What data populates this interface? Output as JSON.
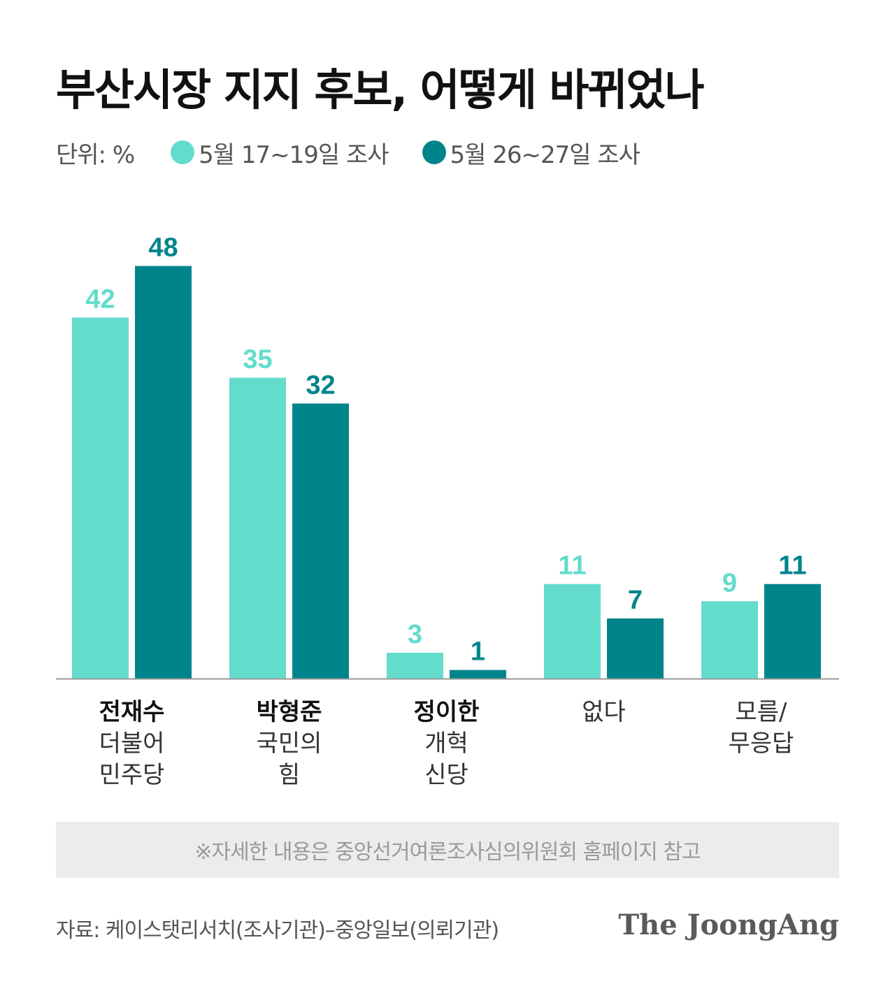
{
  "title": "부산시장 지지 후보, 어떻게 바뀌었나",
  "unit_label": "단위: %",
  "colors": {
    "series1": "#63dccc",
    "series2": "#00848c",
    "axis": "#999999",
    "text": "#1a1a1a"
  },
  "chart_data": {
    "type": "bar",
    "categories": [
      {
        "name": "전재수",
        "sub": [
          "더불어",
          "민주당"
        ]
      },
      {
        "name": "박형준",
        "sub": [
          "국민의",
          "힘"
        ]
      },
      {
        "name": "정이한",
        "sub": [
          "개혁",
          "신당"
        ]
      },
      {
        "name": "",
        "sub": [
          "없다"
        ]
      },
      {
        "name": "",
        "sub": [
          "모름/",
          "무응답"
        ]
      }
    ],
    "series": [
      {
        "name": "5월 17~19일 조사",
        "color": "#63dccc",
        "values": [
          42,
          35,
          3,
          11,
          9
        ]
      },
      {
        "name": "5월 26~27일 조사",
        "color": "#00848c",
        "values": [
          48,
          32,
          1,
          7,
          11
        ]
      }
    ],
    "ylim": [
      0,
      48
    ],
    "grid": false,
    "legend": "top-left"
  },
  "note": "※자세한 내용은 중앙선거여론조사심의위원회 홈페이지 참고",
  "source": "자료: 케이스탯리서치(조사기관)–중앙일보(의뢰기관)",
  "brand": "The JoongAng"
}
